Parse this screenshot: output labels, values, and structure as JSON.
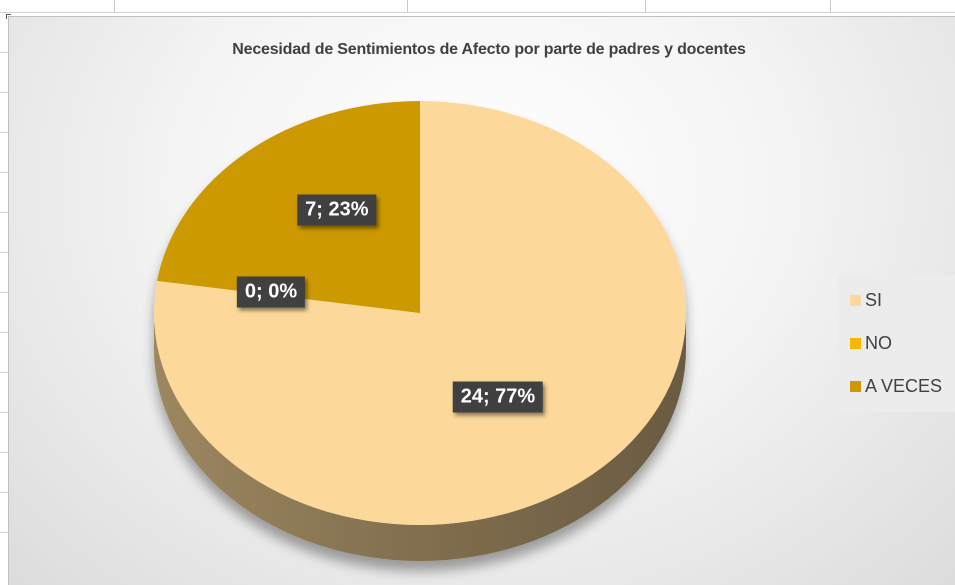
{
  "chart_data": {
    "type": "pie",
    "title": "Necesidad de Sentimientos de Afecto por parte de padres y docentes",
    "categories": [
      "SI",
      "NO",
      "A VECES"
    ],
    "values": [
      24,
      0,
      7
    ],
    "percent_labels": [
      "24; 77%",
      "0; 0%",
      "7; 23%"
    ],
    "colors": [
      "#fcd99a",
      "#f5b800",
      "#cc9900"
    ],
    "style": "3d",
    "legend_position": "right"
  }
}
